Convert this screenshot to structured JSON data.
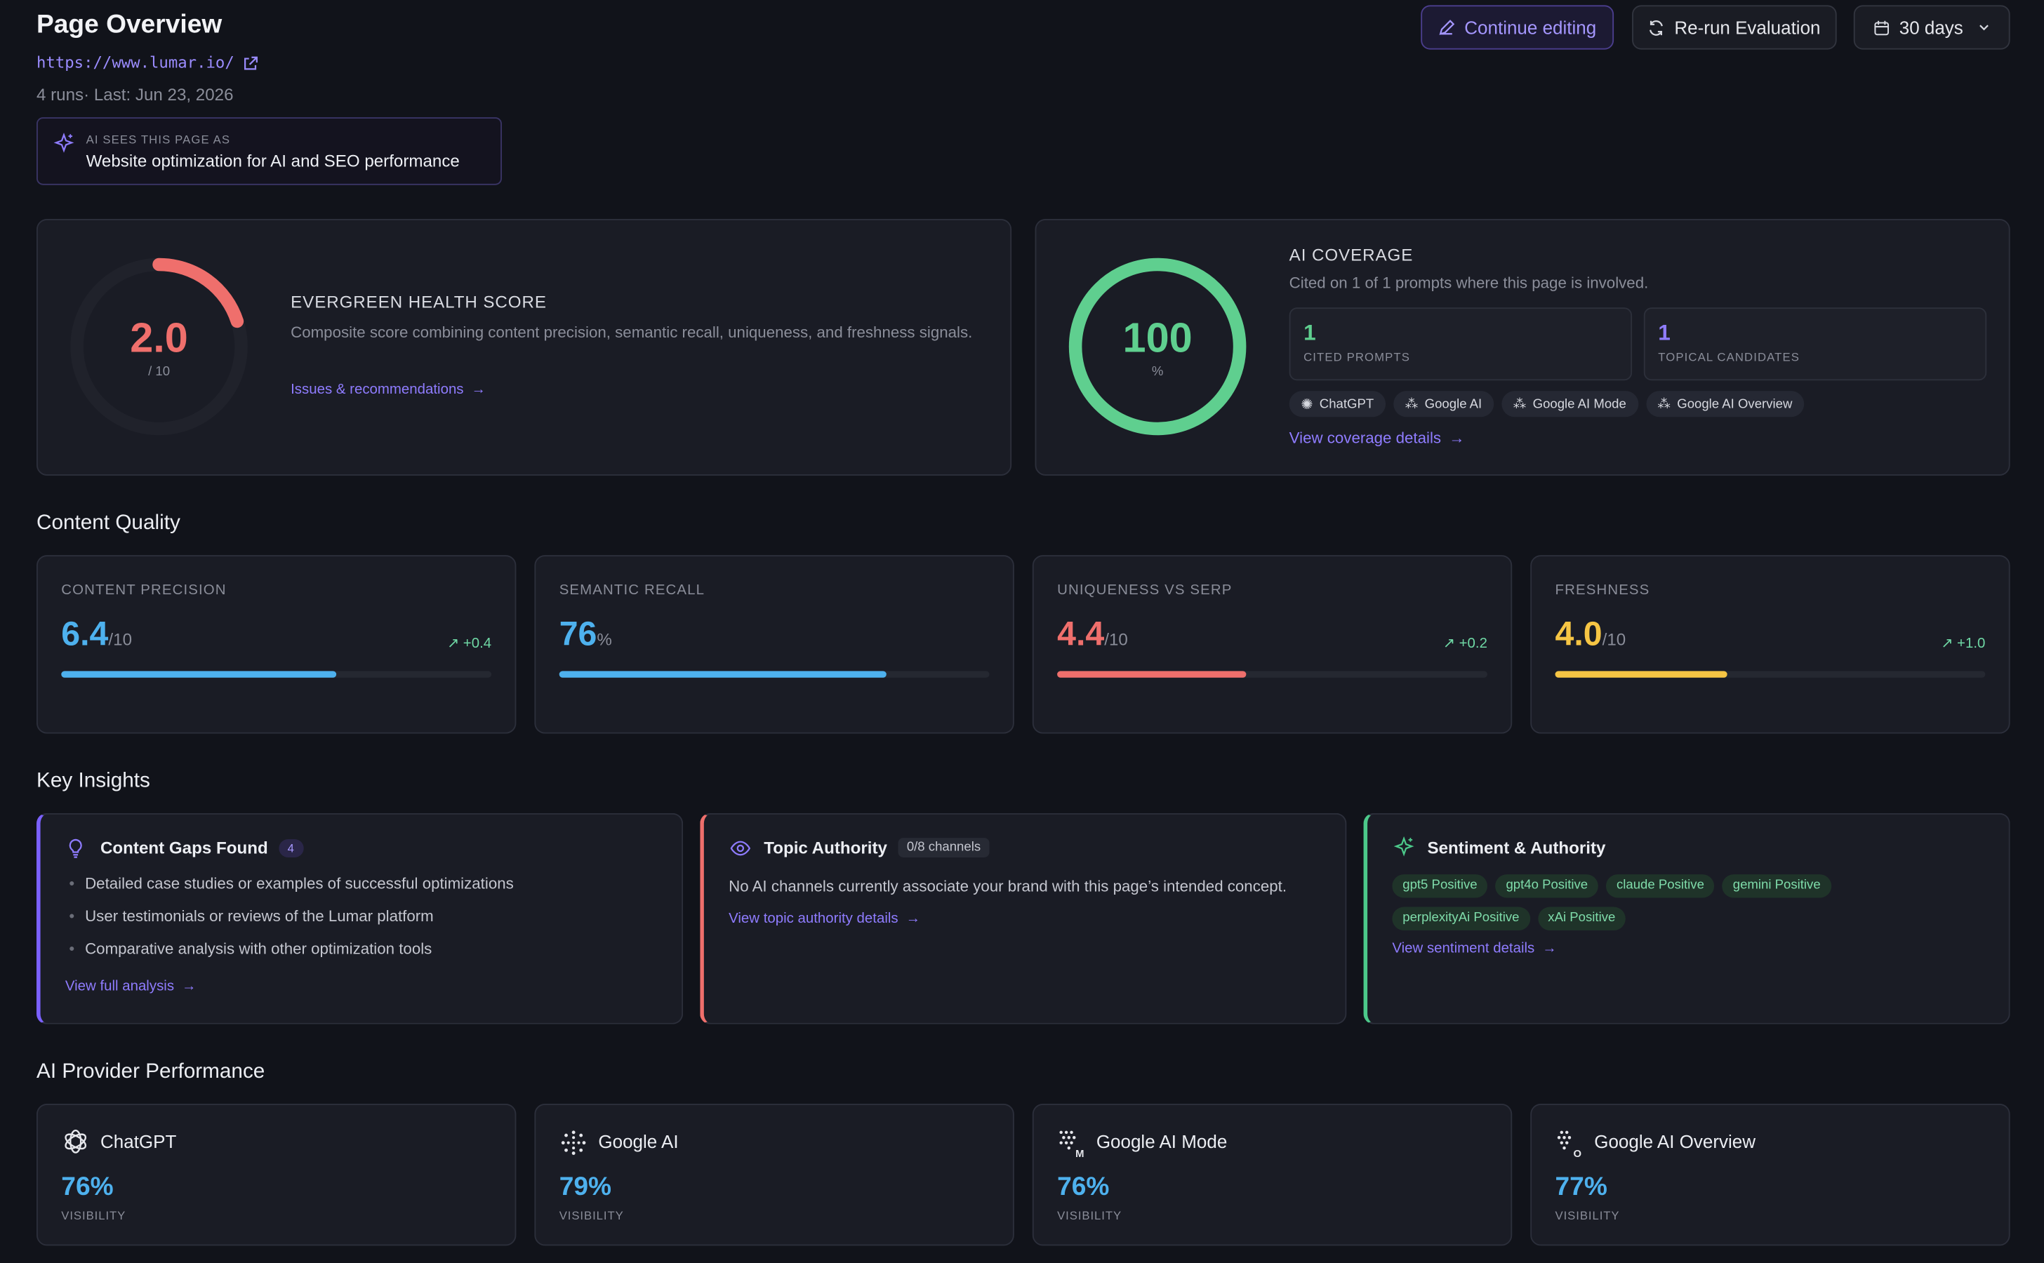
{
  "header": {
    "title": "Page Overview",
    "url": "https://www.lumar.io/",
    "runs_info": "4 runs· Last: Jun 23, 2026",
    "ai_sees_label": "AI SEES THIS PAGE AS",
    "ai_sees_value": "Website optimization for AI and SEO performance"
  },
  "toolbar": {
    "continue_editing": "Continue editing",
    "rerun": "Re-run Evaluation",
    "range": "30 days"
  },
  "health": {
    "score": "2.0",
    "out_of": "/ 10",
    "score_fraction": 0.2,
    "title": "EVERGREEN HEALTH SCORE",
    "description": "Composite score combining content precision, semantic recall, uniqueness, and freshness signals.",
    "link": "Issues & recommendations"
  },
  "coverage": {
    "value": "100",
    "unit": "%",
    "fraction": 1.0,
    "title": "AI COVERAGE",
    "subtitle": "Cited on 1 of 1 prompts where this page is involved.",
    "cited_value": "1",
    "cited_label": "CITED PROMPTS",
    "topical_value": "1",
    "topical_label": "TOPICAL CANDIDATES",
    "chips": [
      "ChatGPT",
      "Google AI",
      "Google AI Mode",
      "Google AI Overview"
    ],
    "link": "View coverage details"
  },
  "quality": {
    "section_title": "Content Quality",
    "metrics": [
      {
        "label": "CONTENT PRECISION",
        "value": "6.4",
        "unit": "/10",
        "delta": "+0.4",
        "fraction": 0.64,
        "color": "#4eb1ee"
      },
      {
        "label": "SEMANTIC RECALL",
        "value": "76",
        "unit": "%",
        "delta": "",
        "fraction": 0.76,
        "color": "#4eb1ee"
      },
      {
        "label": "UNIQUENESS VS SERP",
        "value": "4.4",
        "unit": "/10",
        "delta": "+0.2",
        "fraction": 0.44,
        "color": "#ef6f6c"
      },
      {
        "label": "FRESHNESS",
        "value": "4.0",
        "unit": "/10",
        "delta": "+1.0",
        "fraction": 0.4,
        "color": "#f6c544"
      }
    ]
  },
  "insights": {
    "section_title": "Key Insights",
    "gaps": {
      "title": "Content Gaps Found",
      "count": "4",
      "items": [
        "Detailed case studies or examples of successful optimizations",
        "User testimonials or reviews of the Lumar platform",
        "Comparative analysis with other optimization tools"
      ],
      "link": "View full analysis",
      "accent": "#7b61ff"
    },
    "authority": {
      "title": "Topic Authority",
      "badge": "0/8 channels",
      "text": "No AI channels currently associate your brand with this page’s intended concept.",
      "link": "View topic authority details",
      "accent": "#ef6f6c"
    },
    "sentiment": {
      "title": "Sentiment & Authority",
      "chips": [
        {
          "model": "gpt5",
          "sentiment": "Positive"
        },
        {
          "model": "gpt4o",
          "sentiment": "Positive"
        },
        {
          "model": "claude",
          "sentiment": "Positive"
        },
        {
          "model": "gemini",
          "sentiment": "Positive"
        },
        {
          "model": "perplexityAi",
          "sentiment": "Positive"
        },
        {
          "model": "xAi",
          "sentiment": "Positive"
        }
      ],
      "link": "View sentiment details",
      "accent": "#4cc98a"
    }
  },
  "providers": {
    "section_title": "AI Provider Performance",
    "items": [
      {
        "name": "ChatGPT",
        "value": "76%",
        "label": "VISIBILITY",
        "icon": "chatgpt-icon"
      },
      {
        "name": "Google AI",
        "value": "79%",
        "label": "VISIBILITY",
        "icon": "google-ai-icon"
      },
      {
        "name": "Google AI Mode",
        "value": "76%",
        "label": "VISIBILITY",
        "icon": "google-ai-mode-icon"
      },
      {
        "name": "Google AI Overview",
        "value": "77%",
        "label": "VISIBILITY",
        "icon": "google-ai-overview-icon"
      }
    ]
  }
}
